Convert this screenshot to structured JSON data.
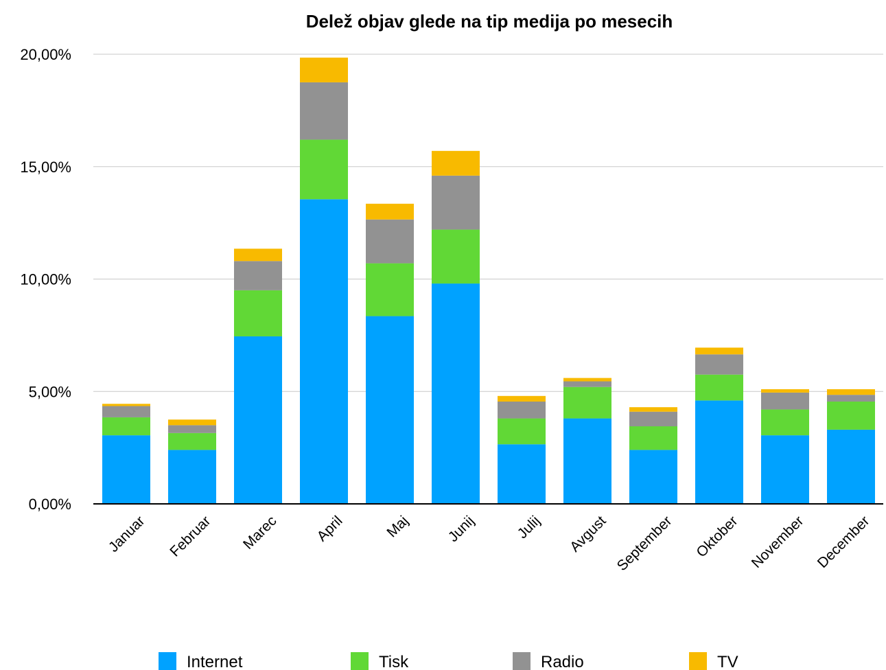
{
  "chart_data": {
    "type": "bar",
    "stacked": true,
    "title": "Delež objav glede na tip medija po mesecih",
    "xlabel": "",
    "ylabel": "",
    "ylim": [
      0,
      20
    ],
    "yticks": [
      "0,00%",
      "5,00%",
      "10,00%",
      "15,00%",
      "20,00%"
    ],
    "grid": true,
    "legend_position": "bottom",
    "categories": [
      "Januar",
      "Februar",
      "Marec",
      "April",
      "Maj",
      "Junij",
      "Julij",
      "Avgust",
      "September",
      "Oktober",
      "November",
      "December"
    ],
    "series": [
      {
        "name": "Internet",
        "color": "#00A2FF",
        "values": [
          3.05,
          2.4,
          7.45,
          13.55,
          8.35,
          9.8,
          2.65,
          3.8,
          2.4,
          4.6,
          3.05,
          3.3
        ]
      },
      {
        "name": "Tisk",
        "color": "#61D836",
        "values": [
          0.8,
          0.75,
          2.05,
          2.65,
          2.35,
          2.4,
          1.15,
          1.4,
          1.05,
          1.15,
          1.15,
          1.25
        ]
      },
      {
        "name": "Radio",
        "color": "#929292",
        "values": [
          0.5,
          0.35,
          1.3,
          2.55,
          1.95,
          2.4,
          0.75,
          0.25,
          0.65,
          0.9,
          0.75,
          0.3
        ]
      },
      {
        "name": "TV",
        "color": "#F8BA00",
        "values": [
          0.1,
          0.25,
          0.55,
          1.1,
          0.7,
          1.1,
          0.25,
          0.15,
          0.2,
          0.3,
          0.15,
          0.25
        ]
      }
    ]
  }
}
